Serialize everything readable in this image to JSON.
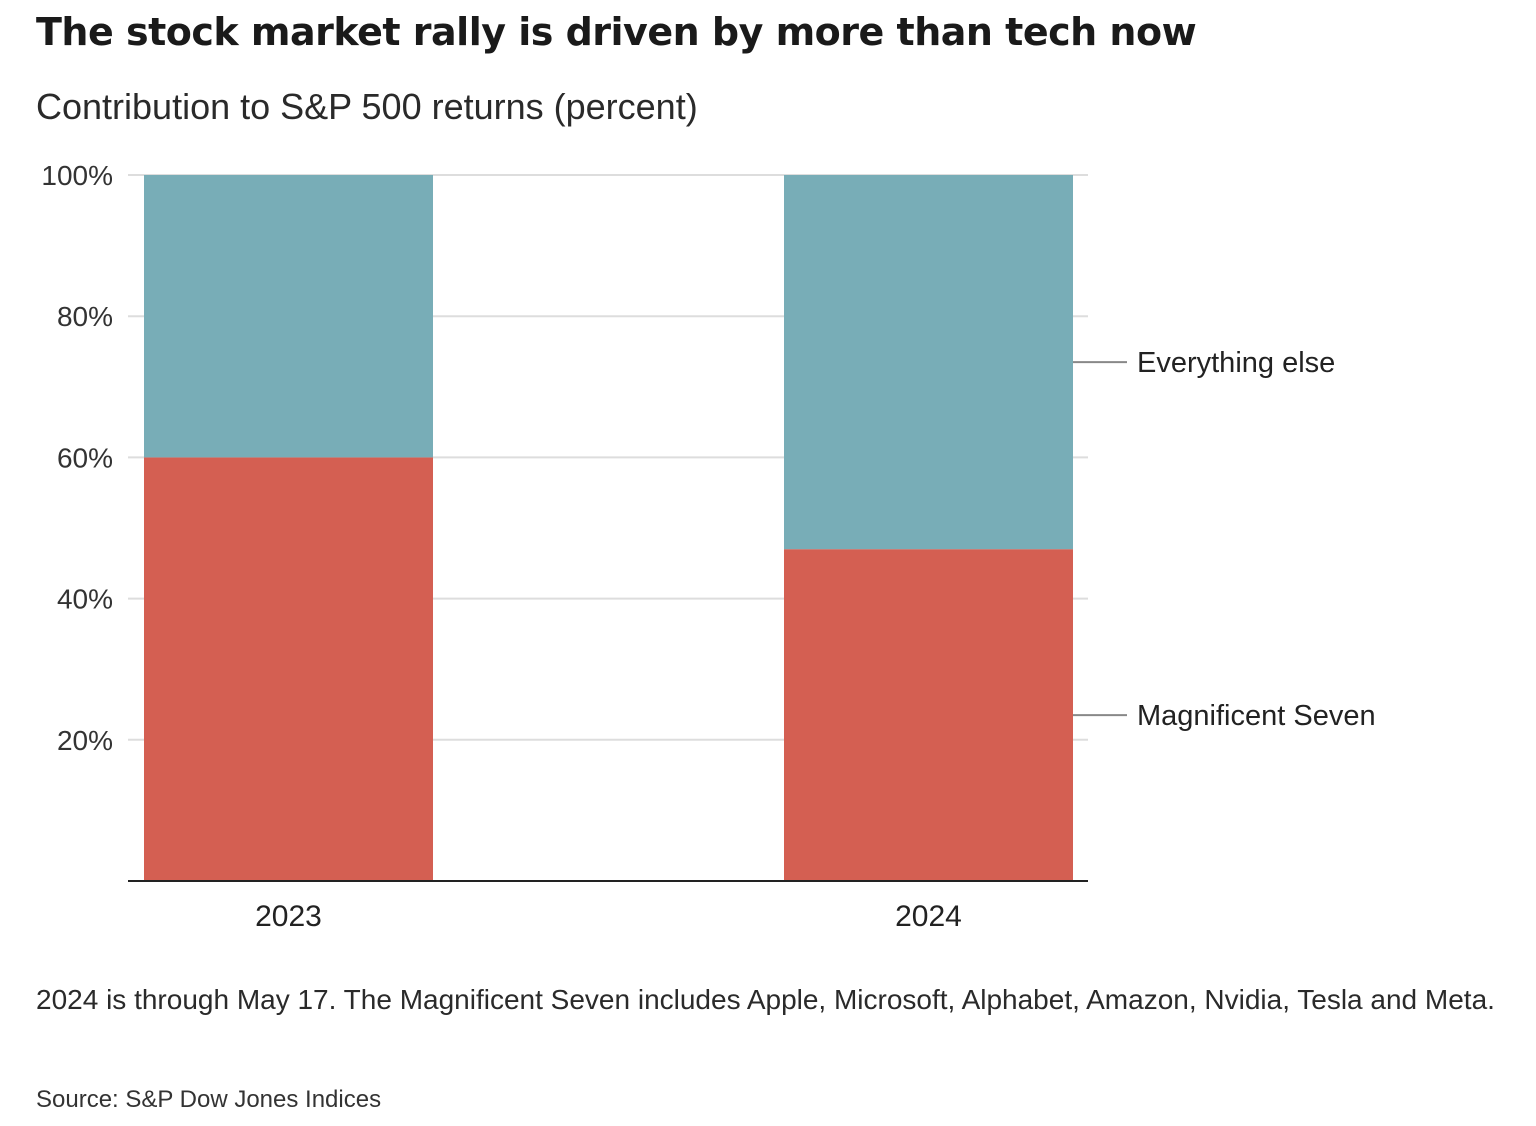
{
  "chart_data": {
    "type": "bar",
    "stacked": true,
    "title": "The stock market rally is driven by more than tech now",
    "subtitle": "Contribution to S&P 500 returns (percent)",
    "categories": [
      "2023",
      "2024"
    ],
    "series": [
      {
        "name": "Magnificent Seven",
        "values": [
          60,
          47
        ],
        "color": "#d45f52"
      },
      {
        "name": "Everything else",
        "values": [
          40,
          53
        ],
        "color": "#78adb7"
      }
    ],
    "ylim": [
      0,
      100
    ],
    "yticks": [
      20,
      40,
      60,
      80,
      100
    ],
    "ytick_labels": [
      "20%",
      "40%",
      "60%",
      "80%",
      "100%"
    ],
    "grid": true,
    "legend": "direct labels at right",
    "note": "2024 is through May 17. The Magnificent Seven includes Apple, Microsoft, Alphabet, Amazon, Nvidia, Tesla and Meta.",
    "source": "Source: S&P Dow Jones Indices"
  }
}
